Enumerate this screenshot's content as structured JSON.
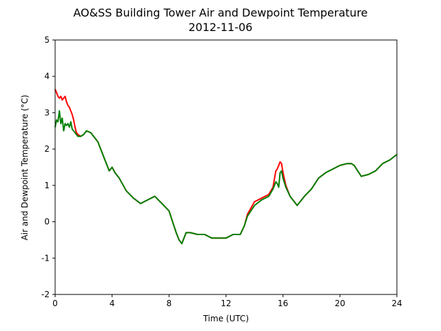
{
  "chart_data": {
    "type": "line",
    "title": "AO&SS Building Tower Air and Dewpoint Temperature",
    "subtitle": "2012-11-06",
    "xlabel": "Time (UTC)",
    "ylabel": "Air and Dewpoint Temperature (°C)",
    "xlim": [
      0,
      24
    ],
    "ylim": [
      -2,
      5
    ],
    "xticks": [
      0,
      4,
      8,
      12,
      16,
      20,
      24
    ],
    "yticks": [
      -2,
      -1,
      0,
      1,
      2,
      3,
      4,
      5
    ],
    "grid": false,
    "series": [
      {
        "color": "#ff0000",
        "x": [
          0.0,
          0.1,
          0.2,
          0.3,
          0.4,
          0.5,
          0.6,
          0.7,
          0.8,
          0.9,
          1.0,
          1.1,
          1.2,
          1.3,
          1.4,
          1.5,
          1.6,
          1.8,
          2.0,
          2.2,
          2.5,
          3.0,
          3.5,
          3.8,
          4.0,
          4.2,
          4.5,
          5.0,
          5.5,
          6.0,
          6.5,
          7.0,
          7.5,
          8.0,
          8.5,
          8.7,
          8.9,
          9.2,
          9.5,
          10.0,
          10.5,
          11.0,
          11.5,
          12.0,
          12.5,
          13.0,
          13.3,
          13.5,
          14.0,
          14.5,
          15.0,
          15.3,
          15.5,
          15.6,
          15.7,
          15.8,
          15.9,
          16.0,
          16.2,
          16.5,
          17.0,
          17.5,
          18.0,
          18.5,
          19.0,
          19.5,
          20.0,
          20.5,
          20.8,
          21.0,
          21.5,
          22.0,
          22.5,
          23.0,
          23.5,
          24.0
        ],
        "y": [
          3.65,
          3.55,
          3.45,
          3.4,
          3.45,
          3.35,
          3.4,
          3.45,
          3.3,
          3.2,
          3.15,
          3.05,
          2.95,
          2.8,
          2.6,
          2.45,
          2.4,
          2.35,
          2.4,
          2.5,
          2.45,
          2.2,
          1.7,
          1.4,
          1.5,
          1.35,
          1.2,
          0.85,
          0.65,
          0.5,
          0.6,
          0.7,
          0.5,
          0.3,
          -0.3,
          -0.5,
          -0.6,
          -0.3,
          -0.3,
          -0.35,
          -0.35,
          -0.45,
          -0.45,
          -0.45,
          -0.35,
          -0.35,
          -0.1,
          0.2,
          0.55,
          0.65,
          0.75,
          0.95,
          1.4,
          1.45,
          1.55,
          1.65,
          1.6,
          1.35,
          1.0,
          0.7,
          0.45,
          0.7,
          0.9,
          1.2,
          1.35,
          1.45,
          1.55,
          1.6,
          1.6,
          1.55,
          1.25,
          1.3,
          1.4,
          1.6,
          1.7,
          1.85
        ]
      },
      {
        "color": "#008000",
        "x": [
          0.0,
          0.1,
          0.2,
          0.3,
          0.4,
          0.5,
          0.6,
          0.7,
          0.8,
          0.9,
          1.0,
          1.1,
          1.2,
          1.3,
          1.4,
          1.5,
          1.6,
          1.8,
          2.0,
          2.2,
          2.5,
          3.0,
          3.5,
          3.8,
          4.0,
          4.2,
          4.5,
          5.0,
          5.5,
          6.0,
          6.5,
          7.0,
          7.5,
          8.0,
          8.5,
          8.7,
          8.9,
          9.2,
          9.5,
          10.0,
          10.5,
          11.0,
          11.5,
          12.0,
          12.5,
          13.0,
          13.3,
          13.5,
          14.0,
          14.5,
          15.0,
          15.3,
          15.5,
          15.6,
          15.7,
          15.8,
          15.9,
          16.0,
          16.2,
          16.5,
          17.0,
          17.5,
          18.0,
          18.5,
          19.0,
          19.5,
          20.0,
          20.5,
          20.8,
          21.0,
          21.5,
          22.0,
          22.5,
          23.0,
          23.5,
          24.0
        ],
        "y": [
          2.6,
          2.8,
          2.75,
          3.05,
          2.7,
          2.85,
          2.5,
          2.7,
          2.65,
          2.7,
          2.6,
          2.75,
          2.55,
          2.5,
          2.45,
          2.4,
          2.35,
          2.35,
          2.4,
          2.5,
          2.45,
          2.2,
          1.7,
          1.4,
          1.5,
          1.35,
          1.2,
          0.85,
          0.65,
          0.5,
          0.6,
          0.7,
          0.5,
          0.3,
          -0.3,
          -0.5,
          -0.6,
          -0.3,
          -0.3,
          -0.35,
          -0.35,
          -0.45,
          -0.45,
          -0.45,
          -0.35,
          -0.35,
          -0.1,
          0.15,
          0.45,
          0.6,
          0.7,
          0.9,
          1.1,
          1.05,
          0.95,
          1.35,
          1.4,
          1.2,
          0.95,
          0.7,
          0.45,
          0.7,
          0.9,
          1.2,
          1.35,
          1.45,
          1.55,
          1.6,
          1.6,
          1.55,
          1.25,
          1.3,
          1.4,
          1.6,
          1.7,
          1.85
        ]
      }
    ]
  }
}
